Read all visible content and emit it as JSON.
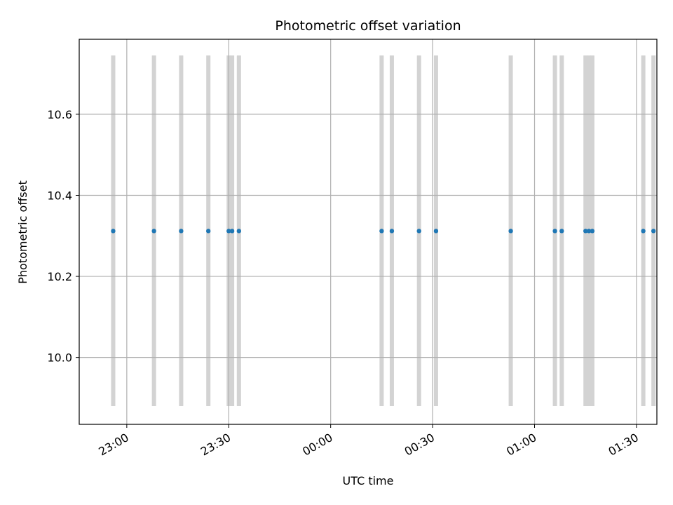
{
  "chart_data": {
    "type": "scatter",
    "title": "Photometric offset variation",
    "xlabel": "UTC time",
    "ylabel": "Photometric offset",
    "x_axis": "time (minutes after 22:00 UTC)",
    "xlim": [
      46,
      116
    ],
    "ylim": [
      9.835,
      10.785
    ],
    "x_ticks": [
      {
        "value": 60,
        "label": "23:00"
      },
      {
        "value": 90,
        "label": "23:30"
      },
      {
        "value": 120,
        "label": "00:00"
      },
      {
        "value": 150,
        "label": "00:30"
      },
      {
        "value": 180,
        "label": "01:00"
      },
      {
        "value": 210,
        "label": "01:30"
      }
    ],
    "y_ticks": [
      {
        "value": 10.0,
        "label": "10.0"
      },
      {
        "value": 10.2,
        "label": "10.2"
      },
      {
        "value": 10.4,
        "label": "10.4"
      },
      {
        "value": 10.6,
        "label": "10.6"
      }
    ],
    "grid": true,
    "points": {
      "color": "#1f77b4",
      "times": [
        "22:56",
        "23:08",
        "23:16",
        "23:24",
        "23:30",
        "23:31",
        "23:33",
        "00:15",
        "00:18",
        "00:26",
        "00:31",
        "00:53",
        "01:06",
        "01:08",
        "01:15",
        "01:16",
        "01:17",
        "01:32",
        "01:35"
      ],
      "y": [
        10.312,
        10.312,
        10.312,
        10.312,
        10.312,
        10.312,
        10.312,
        10.312,
        10.312,
        10.312,
        10.312,
        10.312,
        10.312,
        10.312,
        10.312,
        10.312,
        10.312,
        10.312,
        10.312
      ]
    },
    "bands": {
      "color": "#d3d3d3",
      "y_range": [
        9.88,
        10.745
      ]
    }
  }
}
